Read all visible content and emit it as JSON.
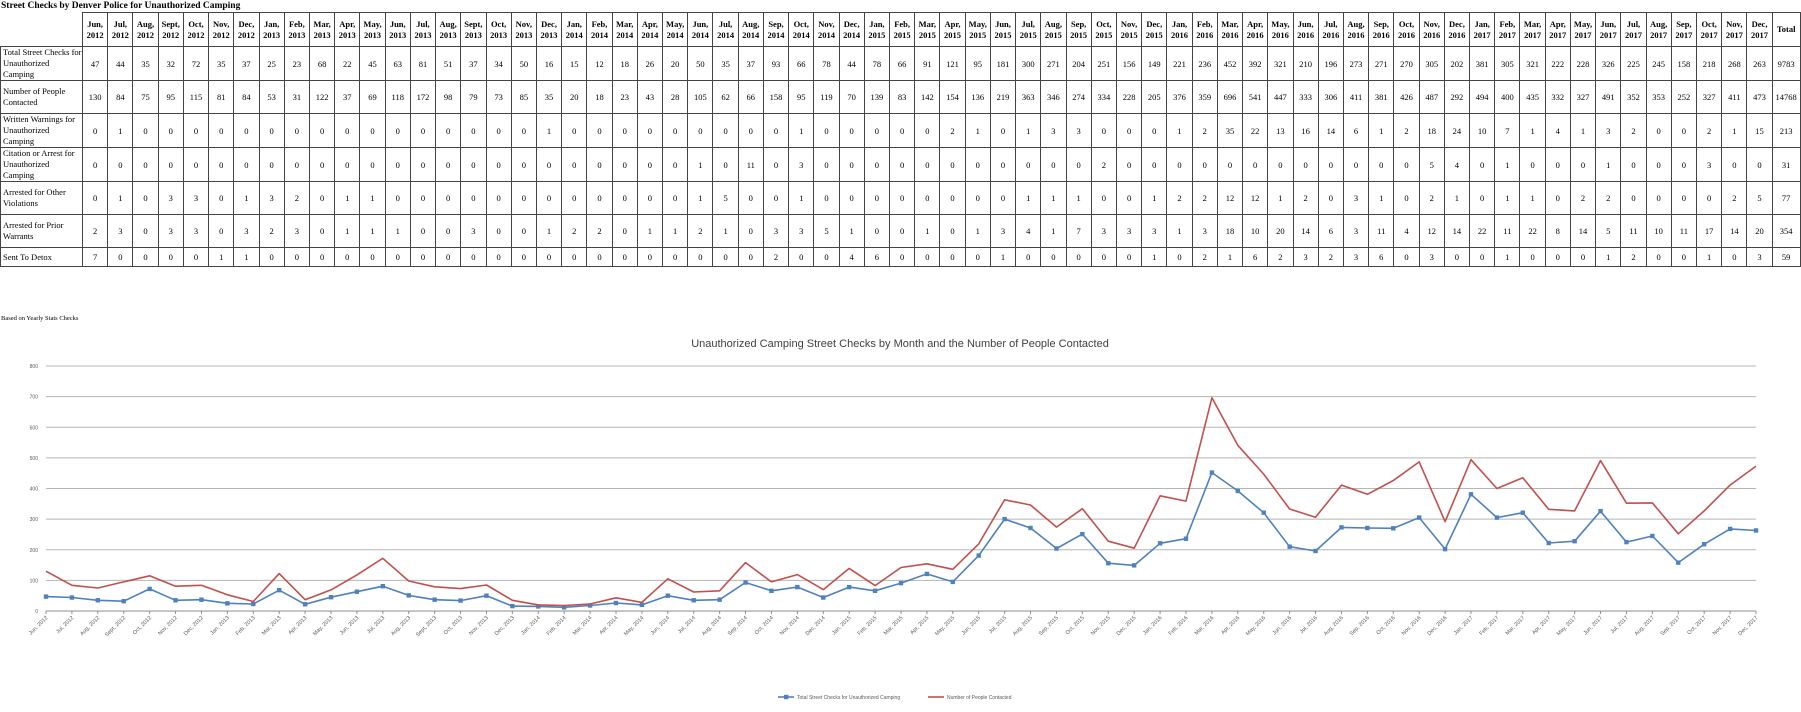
{
  "sheet": {
    "title": "Street Checks by Denver Police for Unauthorized Camping",
    "note": "Based on Yearly Stats Checks"
  },
  "table": {
    "months": [
      "Jun, 2012",
      "Jul, 2012",
      "Aug, 2012",
      "Sept, 2012",
      "Oct, 2012",
      "Nov, 2012",
      "Dec, 2012",
      "Jan, 2013",
      "Feb, 2013",
      "Mar, 2013",
      "Apr, 2013",
      "May, 2013",
      "Jun, 2013",
      "Jul, 2013",
      "Aug, 2013",
      "Sept, 2013",
      "Oct, 2013",
      "Nov, 2013",
      "Dec, 2013",
      "Jan, 2014",
      "Feb, 2014",
      "Mar, 2014",
      "Apr, 2014",
      "May, 2014",
      "Jun, 2014",
      "Jul, 2014",
      "Aug, 2014",
      "Sep, 2014",
      "Oct, 2014",
      "Nov, 2014",
      "Dec, 2014",
      "Jan, 2015",
      "Feb, 2015",
      "Mar, 2015",
      "Apr, 2015",
      "May, 2015",
      "Jun, 2015",
      "Jul, 2015",
      "Aug, 2015",
      "Sep, 2015",
      "Oct, 2015",
      "Nov, 2015",
      "Dec, 2015",
      "Jan, 2016",
      "Feb, 2016",
      "Mar, 2016",
      "Apr, 2016",
      "May, 2016",
      "Jun, 2016",
      "Jul, 2016",
      "Aug, 2016",
      "Sep, 2016",
      "Oct, 2016",
      "Nov, 2016",
      "Dec, 2016",
      "Jan, 2017",
      "Feb, 2017",
      "Mar, 2017",
      "Apr, 2017",
      "May, 2017",
      "Jun, 2017",
      "Jul, 2017",
      "Aug, 2017",
      "Sep, 2017",
      "Oct, 2017",
      "Nov, 2017",
      "Dec, 2017"
    ],
    "total_label": "Total",
    "rows": [
      {
        "label": "Total Street Checks for Unauthorized Camping",
        "values": [
          47,
          44,
          35,
          32,
          72,
          35,
          37,
          25,
          23,
          68,
          22,
          45,
          63,
          81,
          51,
          37,
          34,
          50,
          16,
          15,
          12,
          18,
          26,
          20,
          50,
          35,
          37,
          93,
          66,
          78,
          44,
          78,
          66,
          91,
          121,
          95,
          181,
          300,
          271,
          204,
          251,
          156,
          149,
          221,
          236,
          452,
          392,
          321,
          210,
          196,
          273,
          271,
          270,
          305,
          202,
          381,
          305,
          321,
          222,
          228,
          326,
          225,
          245,
          158,
          218,
          268,
          263
        ],
        "total": 9783
      },
      {
        "label": "Number of People Contacted",
        "values": [
          130,
          84,
          75,
          95,
          115,
          81,
          84,
          53,
          31,
          122,
          37,
          69,
          118,
          172,
          98,
          79,
          73,
          85,
          35,
          20,
          18,
          23,
          43,
          28,
          105,
          62,
          66,
          158,
          95,
          119,
          70,
          139,
          83,
          142,
          154,
          136,
          219,
          363,
          346,
          274,
          334,
          228,
          205,
          376,
          359,
          696,
          541,
          447,
          333,
          306,
          411,
          381,
          426,
          487,
          292,
          494,
          400,
          435,
          332,
          327,
          491,
          352,
          353,
          252,
          327,
          411,
          473
        ],
        "total": 14768
      },
      {
        "label": "Written Warnings for Unauthorized Camping",
        "values": [
          0,
          1,
          0,
          0,
          0,
          0,
          0,
          0,
          0,
          0,
          0,
          0,
          0,
          0,
          0,
          0,
          0,
          0,
          1,
          0,
          0,
          0,
          0,
          0,
          0,
          0,
          0,
          0,
          1,
          0,
          0,
          0,
          0,
          0,
          2,
          1,
          0,
          1,
          3,
          3,
          0,
          0,
          0,
          1,
          2,
          35,
          22,
          13,
          16,
          14,
          6,
          1,
          2,
          18,
          24,
          10,
          7,
          1,
          4,
          1,
          3,
          2,
          0,
          0,
          2,
          1,
          15
        ],
        "total": 213
      },
      {
        "label": "Citation or Arrest for Unauthorized Camping",
        "values": [
          0,
          0,
          0,
          0,
          0,
          0,
          0,
          0,
          0,
          0,
          0,
          0,
          0,
          0,
          0,
          0,
          0,
          0,
          0,
          0,
          0,
          0,
          0,
          0,
          1,
          0,
          11,
          0,
          3,
          0,
          0,
          0,
          0,
          0,
          0,
          0,
          0,
          0,
          0,
          0,
          2,
          0,
          0,
          0,
          0,
          0,
          0,
          0,
          0,
          0,
          0,
          0,
          0,
          5,
          4,
          0,
          1,
          0,
          0,
          0,
          1,
          0,
          0,
          0,
          3,
          0,
          0
        ],
        "total": 31
      },
      {
        "label": "Arrested for Other Violations",
        "values": [
          0,
          1,
          0,
          3,
          3,
          0,
          1,
          3,
          2,
          0,
          1,
          1,
          0,
          0,
          0,
          0,
          0,
          0,
          0,
          0,
          0,
          0,
          0,
          0,
          1,
          5,
          0,
          0,
          1,
          0,
          0,
          0,
          0,
          0,
          0,
          0,
          0,
          1,
          1,
          1,
          0,
          0,
          1,
          2,
          2,
          12,
          12,
          1,
          2,
          0,
          3,
          1,
          0,
          2,
          1,
          0,
          1,
          1,
          0,
          2,
          2,
          0,
          0,
          0,
          0,
          2,
          5
        ],
        "total": 77
      },
      {
        "label": "Arrested for Prior Warrants",
        "values": [
          2,
          3,
          0,
          3,
          3,
          0,
          3,
          2,
          3,
          0,
          1,
          1,
          1,
          0,
          0,
          3,
          0,
          0,
          1,
          2,
          2,
          0,
          1,
          1,
          2,
          1,
          0,
          3,
          3,
          5,
          1,
          0,
          0,
          1,
          0,
          1,
          3,
          4,
          1,
          7,
          3,
          3,
          3,
          1,
          3,
          18,
          10,
          20,
          14,
          6,
          3,
          11,
          4,
          12,
          14,
          22,
          11,
          22,
          8,
          14,
          5,
          11,
          10,
          11,
          17,
          14,
          20
        ],
        "total": 354
      },
      {
        "label": "Sent To Detox",
        "values": [
          7,
          0,
          0,
          0,
          0,
          1,
          1,
          0,
          0,
          0,
          0,
          0,
          0,
          0,
          0,
          0,
          0,
          0,
          0,
          0,
          0,
          0,
          0,
          0,
          0,
          0,
          0,
          2,
          0,
          0,
          4,
          6,
          0,
          0,
          0,
          0,
          1,
          0,
          0,
          0,
          0,
          0,
          1,
          0,
          2,
          1,
          6,
          2,
          3,
          2,
          3,
          6,
          0,
          3,
          0,
          0,
          1,
          0,
          0,
          0,
          1,
          2,
          0,
          0,
          1,
          0,
          3
        ],
        "total": 59
      }
    ]
  },
  "chart_data": {
    "type": "line",
    "title": "Unauthorized Camping Street Checks by Month and the Number of People Contacted",
    "x": [
      "Jun, 2012",
      "Jul, 2012",
      "Aug, 2012",
      "Sept, 2012",
      "Oct, 2012",
      "Nov, 2012",
      "Dec, 2012",
      "Jan, 2013",
      "Feb, 2013",
      "Mar, 2013",
      "Apr, 2013",
      "May, 2013",
      "Jun, 2013",
      "Jul, 2013",
      "Aug, 2013",
      "Sept, 2013",
      "Oct, 2013",
      "Nov, 2013",
      "Dec, 2013",
      "Jan, 2014",
      "Feb, 2014",
      "Mar, 2014",
      "Apr, 2014",
      "May, 2014",
      "Jun, 2014",
      "Jul, 2014",
      "Aug, 2014",
      "Sep, 2014",
      "Oct, 2014",
      "Nov, 2014",
      "Dec, 2014",
      "Jan, 2015",
      "Feb, 2015",
      "Mar, 2015",
      "Apr, 2015",
      "May, 2015",
      "Jun, 2015",
      "Jul, 2015",
      "Aug, 2015",
      "Sep, 2015",
      "Oct, 2015",
      "Nov, 2015",
      "Dec, 2015",
      "Jan, 2016",
      "Feb, 2016",
      "Mar, 2016",
      "Apr, 2016",
      "May, 2016",
      "Jun, 2016",
      "Jul, 2016",
      "Aug, 2016",
      "Sep, 2016",
      "Oct, 2016",
      "Nov, 2016",
      "Dec, 2016",
      "Jan, 2017",
      "Feb, 2017",
      "Mar, 2017",
      "Apr, 2017",
      "May, 2017",
      "Jun, 2017",
      "Jul, 2017",
      "Aug, 2017",
      "Sep, 2017",
      "Oct, 2017",
      "Nov, 2017",
      "Dec, 2017"
    ],
    "series": [
      {
        "name": "Total Street Checks for Unauthorized Camping",
        "color": "#4f81bd",
        "marker": "square",
        "values": [
          47,
          44,
          35,
          32,
          72,
          35,
          37,
          25,
          23,
          68,
          22,
          45,
          63,
          81,
          51,
          37,
          34,
          50,
          16,
          15,
          12,
          18,
          26,
          20,
          50,
          35,
          37,
          93,
          66,
          78,
          44,
          78,
          66,
          91,
          121,
          95,
          181,
          300,
          271,
          204,
          251,
          156,
          149,
          221,
          236,
          452,
          392,
          321,
          210,
          196,
          273,
          271,
          270,
          305,
          202,
          381,
          305,
          321,
          222,
          228,
          326,
          225,
          245,
          158,
          218,
          268,
          263
        ]
      },
      {
        "name": "Number of People Contacted",
        "color": "#c0504d",
        "marker": "none",
        "values": [
          130,
          84,
          75,
          95,
          115,
          81,
          84,
          53,
          31,
          122,
          37,
          69,
          118,
          172,
          98,
          79,
          73,
          85,
          35,
          20,
          18,
          23,
          43,
          28,
          105,
          62,
          66,
          158,
          95,
          119,
          70,
          139,
          83,
          142,
          154,
          136,
          219,
          363,
          346,
          274,
          334,
          228,
          205,
          376,
          359,
          696,
          541,
          447,
          333,
          306,
          411,
          381,
          426,
          487,
          292,
          494,
          400,
          435,
          332,
          327,
          491,
          352,
          353,
          252,
          327,
          411,
          473
        ]
      }
    ],
    "ylim": [
      0,
      800
    ],
    "yticks": [
      0,
      100,
      200,
      300,
      400,
      500,
      600,
      700,
      800
    ],
    "grid": true,
    "legend_position": "bottom"
  }
}
